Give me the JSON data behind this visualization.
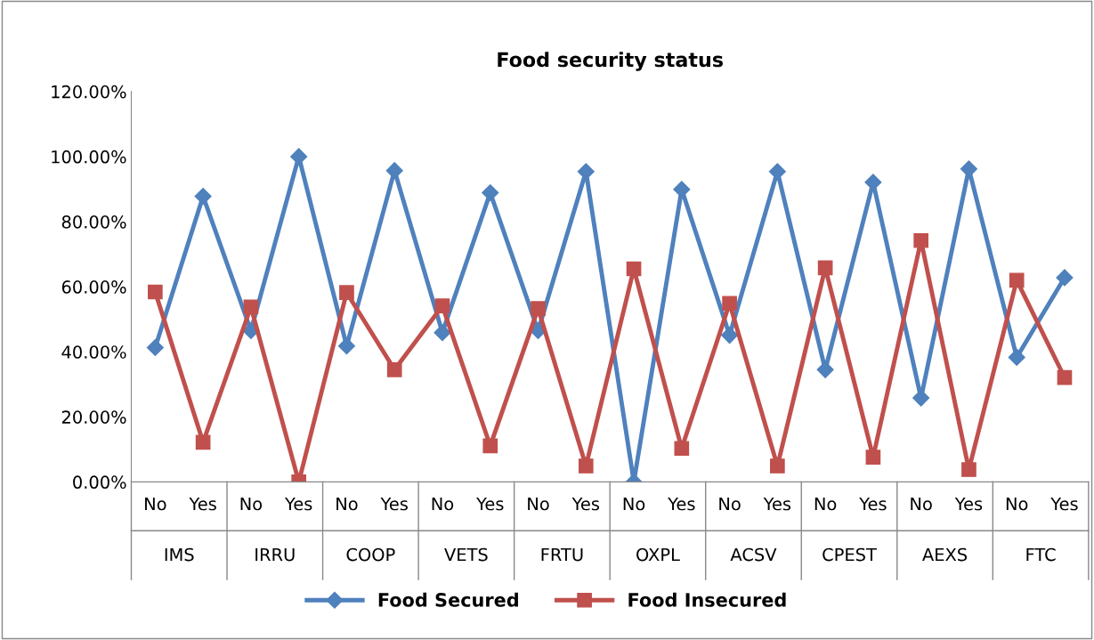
{
  "chart_data": {
    "type": "line",
    "title": "Food security status",
    "categories": [
      "No",
      "Yes",
      "No",
      "Yes",
      "No",
      "Yes",
      "No",
      "Yes",
      "No",
      "Yes",
      "No",
      "Yes",
      "No",
      "Yes",
      "No",
      "Yes",
      "No",
      "Yes",
      "No",
      "Yes"
    ],
    "annotations": [
      "IMS",
      "IRRU",
      "COOP",
      "VETS",
      "FRTU",
      "OXPL",
      "ACSV",
      "CPEST",
      "AEXS",
      "FTC"
    ],
    "series": [
      {
        "name": "Food Secured",
        "color": "#4f81bd",
        "marker": "diamond",
        "values": [
          41.3,
          87.8,
          46.5,
          100,
          41.8,
          95.7,
          45.9,
          88.9,
          46.5,
          95.4,
          0,
          89.9,
          45.1,
          95.4,
          34.5,
          92.1,
          25.8,
          96.2,
          38.3,
          62.8
        ]
      },
      {
        "name": "Food Insecured",
        "color": "#c0504d",
        "marker": "square",
        "values": [
          58.4,
          12.2,
          53.8,
          0,
          58.2,
          34.5,
          54.1,
          11.1,
          53.3,
          4.9,
          65.5,
          10.3,
          54.9,
          4.9,
          65.8,
          7.6,
          74.2,
          3.8,
          62,
          32.1
        ]
      }
    ],
    "ylim": [
      0,
      120
    ],
    "yticks": [
      {
        "value": 0,
        "label": "0.00%"
      },
      {
        "value": 20,
        "label": "20.00%"
      },
      {
        "value": 40,
        "label": "40.00%"
      },
      {
        "value": 60,
        "label": "60.00%"
      },
      {
        "value": 80,
        "label": "80.00%"
      },
      {
        "value": 100,
        "label": "100.00%"
      },
      {
        "value": 120,
        "label": "120.00%"
      }
    ],
    "grid": false,
    "legend": "bottom",
    "line_style": "solid"
  }
}
